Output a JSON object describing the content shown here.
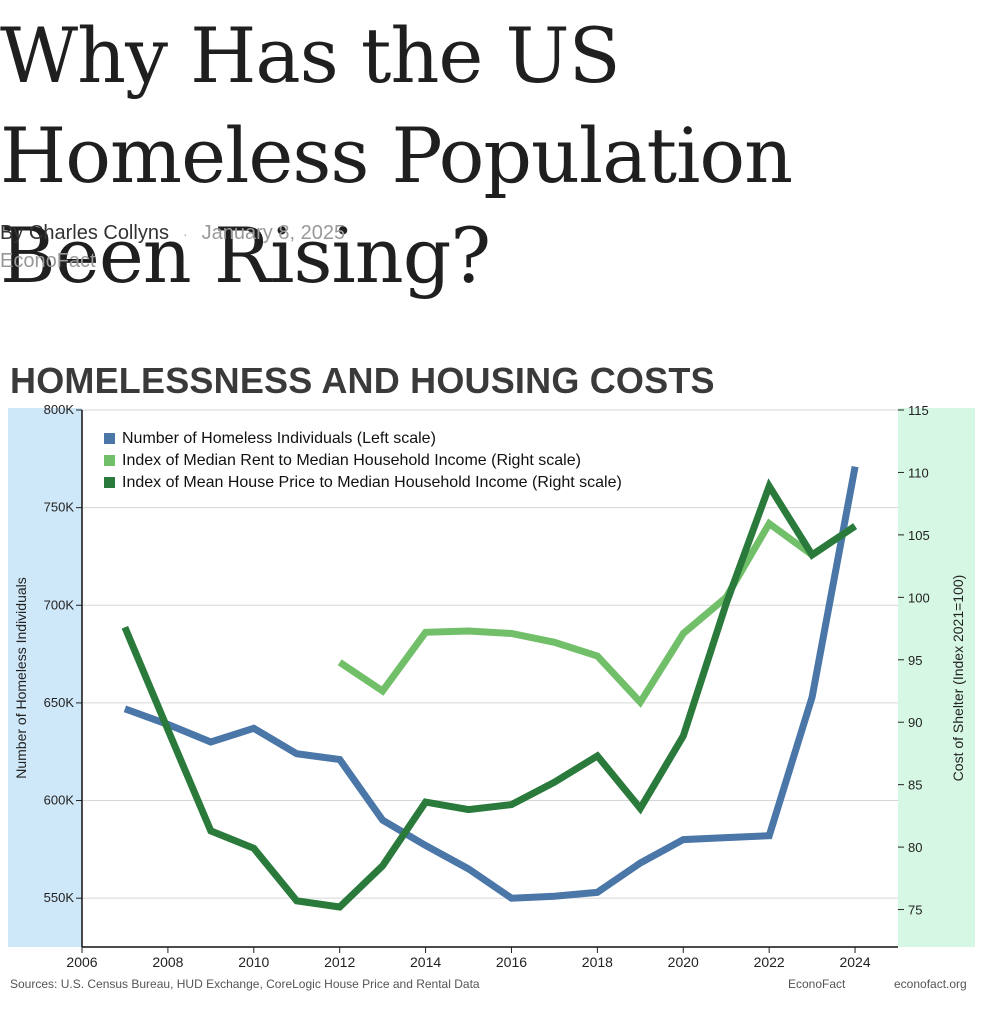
{
  "article": {
    "headline": "Why Has the US Homeless Population Been Rising?",
    "author": "By Charles Collyns",
    "separator": "·",
    "date": "January 8, 2025",
    "publisher": "EconoFact"
  },
  "footer": {
    "sources": "Sources: U.S. Census Bureau, HUD Exchange, CoreLogic House Price and Rental Data",
    "brand": "EconoFact",
    "site": "econofact.org"
  },
  "colors": {
    "left_band": "#cfe8f9",
    "right_band": "#d6f7e4",
    "homeless": "#4a76a8",
    "rent": "#72bf6a",
    "house": "#2a7a3b"
  },
  "chart_data": {
    "type": "line",
    "title": "HOMELESSNESS AND HOUSING COSTS",
    "ylabel": "Number of Homeless Individuals",
    "ylabel_right": "Cost of Shelter (Index 2021=100)",
    "xlim": [
      2006,
      2025
    ],
    "ylim": [
      525000,
      800000
    ],
    "ylim_right": [
      72,
      115
    ],
    "x_ticks": [
      "2006",
      "2008",
      "2010",
      "2012",
      "2014",
      "2016",
      "2018",
      "2020",
      "2022",
      "2024"
    ],
    "y_ticks": [
      "550K",
      "600K",
      "650K",
      "700K",
      "750K",
      "800K"
    ],
    "y_ticks_right": [
      "75",
      "80",
      "85",
      "90",
      "95",
      "100",
      "105",
      "110",
      "115"
    ],
    "grid": true,
    "legend_position": "top-left",
    "series": [
      {
        "name": "Number of Homeless Individuals (Left scale)",
        "axis": "left",
        "x": [
          2007,
          2008,
          2009,
          2010,
          2011,
          2012,
          2013,
          2014,
          2015,
          2016,
          2017,
          2018,
          2019,
          2020,
          2021,
          2022,
          2023,
          2024
        ],
        "y": [
          647000,
          639000,
          630000,
          637000,
          624000,
          621000,
          590000,
          577000,
          565000,
          550000,
          551000,
          553000,
          568000,
          580000,
          581000,
          582000,
          653000,
          771000
        ]
      },
      {
        "name": "Index of Median Rent to Median Household Income (Right scale)",
        "axis": "right",
        "x": [
          2012,
          2013,
          2014,
          2015,
          2016,
          2017,
          2018,
          2019,
          2020,
          2021,
          2022,
          2023,
          2024
        ],
        "y": [
          94.8,
          92.5,
          97.2,
          97.3,
          97.1,
          96.4,
          95.3,
          91.6,
          97.1,
          100.0,
          105.9,
          103.4,
          105.7
        ]
      },
      {
        "name": "Index of Mean House Price to Median Household Income (Right scale)",
        "axis": "right",
        "x": [
          2007,
          2008,
          2009,
          2010,
          2011,
          2012,
          2013,
          2014,
          2015,
          2016,
          2017,
          2018,
          2019,
          2020,
          2021,
          2022,
          2023,
          2024
        ],
        "y": [
          97.6,
          89.4,
          81.3,
          79.9,
          75.7,
          75.2,
          78.5,
          83.6,
          83.0,
          83.4,
          85.2,
          87.3,
          83.1,
          88.9,
          99.5,
          108.9,
          103.4,
          105.7
        ]
      }
    ]
  }
}
